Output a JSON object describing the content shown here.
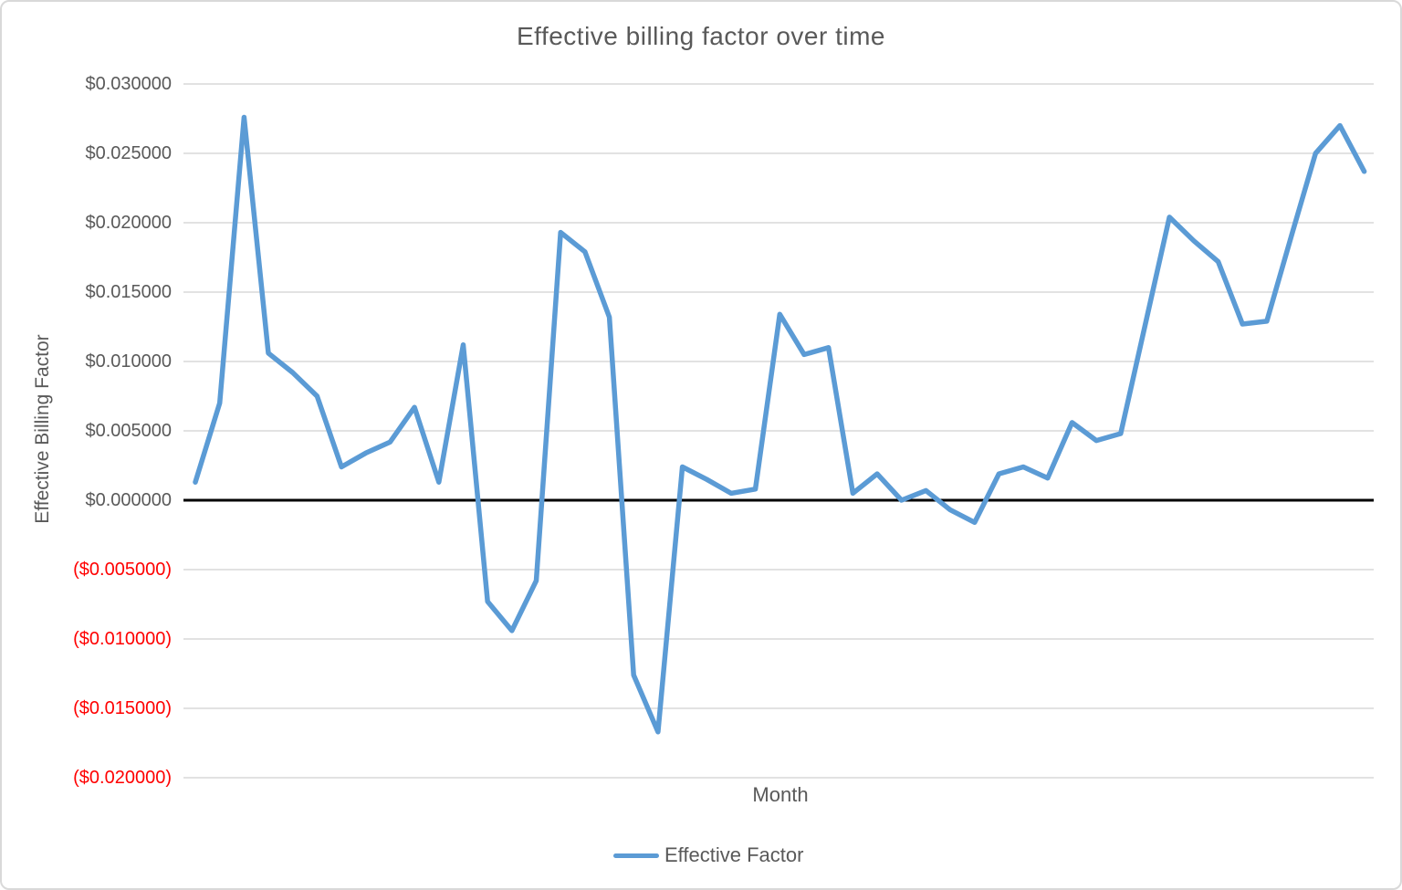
{
  "chart": {
    "title": "Effective billing factor over time",
    "y_axis_title": "Effective Billing Factor",
    "x_axis_title": "Month",
    "legend_label": "Effective Factor"
  },
  "chart_data": {
    "type": "line",
    "title": "Effective billing factor over time",
    "xlabel": "Month",
    "ylabel": "Effective Billing Factor",
    "legend_position": "bottom",
    "grid": "horizontal",
    "ylim": [
      -0.02,
      0.03
    ],
    "x_tick_labels_visible": false,
    "x": [
      1,
      2,
      3,
      4,
      5,
      6,
      7,
      8,
      9,
      10,
      11,
      12,
      13,
      14,
      15,
      16,
      17,
      18,
      19,
      20,
      21,
      22,
      23,
      24,
      25,
      26,
      27,
      28,
      29,
      30,
      31,
      32,
      33,
      34,
      35,
      36,
      37,
      38,
      39,
      40,
      41,
      42,
      43,
      44,
      45,
      46,
      47,
      48,
      49
    ],
    "series": [
      {
        "name": "Effective Factor",
        "values": [
          0.0013,
          0.007,
          0.0276,
          0.0106,
          0.0092,
          0.0075,
          0.0024,
          0.0034,
          0.0042,
          0.0067,
          0.0013,
          0.0112,
          -0.0073,
          -0.0094,
          -0.0058,
          0.0193,
          0.0179,
          0.0132,
          -0.0126,
          -0.0167,
          0.0024,
          0.0015,
          0.0005,
          0.0008,
          0.0134,
          0.0105,
          0.011,
          0.0005,
          0.0019,
          0.0,
          0.0007,
          -0.0007,
          -0.0016,
          0.0019,
          0.0024,
          0.0016,
          0.0056,
          0.0043,
          0.0048,
          0.0126,
          0.0204,
          0.0187,
          0.0172,
          0.0127,
          0.0129,
          0.019,
          0.025,
          0.027,
          0.0237
        ]
      }
    ],
    "y_ticks": [
      {
        "label": "$0.030000",
        "value": 0.03
      },
      {
        "label": "$0.025000",
        "value": 0.025
      },
      {
        "label": "$0.020000",
        "value": 0.02
      },
      {
        "label": "$0.015000",
        "value": 0.015
      },
      {
        "label": "$0.010000",
        "value": 0.01
      },
      {
        "label": "$0.005000",
        "value": 0.005
      },
      {
        "label": "$0.000000",
        "value": 0.0
      },
      {
        "label": "($0.005000)",
        "value": -0.005
      },
      {
        "label": "($0.010000)",
        "value": -0.01
      },
      {
        "label": "($0.015000)",
        "value": -0.015
      },
      {
        "label": "($0.020000)",
        "value": -0.02
      }
    ],
    "colors": {
      "line": "#5b9bd5",
      "gridline": "#d9d9d9",
      "zero_line": "#000000",
      "text": "#595959",
      "negative_label": "#ff0000"
    }
  }
}
